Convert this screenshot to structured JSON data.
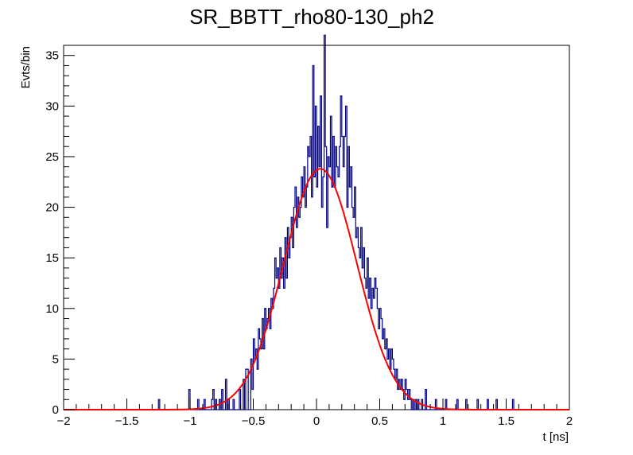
{
  "chart_data": {
    "type": "histogram",
    "title": "SR_BBTT_rho80-130_ph2",
    "xlabel": "t [ns]",
    "ylabel": "Evts/bin",
    "xlim": [
      -2,
      2
    ],
    "ylim": [
      0,
      36
    ],
    "bin_width": 0.01,
    "x_ticks": [
      -2,
      -1.5,
      -1,
      -0.5,
      0,
      0.5,
      1,
      1.5,
      2
    ],
    "x_tick_labels": [
      "−2",
      "−1.5",
      "−1",
      "−0.5",
      "0",
      "0.5",
      "1",
      "1.5",
      "2"
    ],
    "y_ticks": [
      0,
      5,
      10,
      15,
      20,
      25,
      30,
      35
    ],
    "y_tick_labels": [
      "0",
      "5",
      "10",
      "15",
      "20",
      "25",
      "30",
      "35"
    ],
    "grid": false,
    "histogram_color": "#000080",
    "fit_color": "#ff0000",
    "nonzero_bins": [
      [
        -1.25,
        1
      ],
      [
        -1.01,
        2
      ],
      [
        -0.94,
        1
      ],
      [
        -0.89,
        1
      ],
      [
        -0.83,
        1
      ],
      [
        -0.82,
        2
      ],
      [
        -0.8,
        1
      ],
      [
        -0.77,
        1
      ],
      [
        -0.75,
        2
      ],
      [
        -0.72,
        3
      ],
      [
        -0.7,
        1
      ],
      [
        -0.66,
        1
      ],
      [
        -0.61,
        2
      ],
      [
        -0.58,
        3
      ],
      [
        -0.56,
        4
      ],
      [
        -0.55,
        4
      ],
      [
        -0.52,
        5
      ],
      [
        -0.51,
        2
      ],
      [
        -0.5,
        7
      ],
      [
        -0.49,
        5
      ],
      [
        -0.48,
        6
      ],
      [
        -0.47,
        4
      ],
      [
        -0.46,
        8
      ],
      [
        -0.45,
        7
      ],
      [
        -0.44,
        6
      ],
      [
        -0.43,
        9
      ],
      [
        -0.42,
        6
      ],
      [
        -0.41,
        10
      ],
      [
        -0.4,
        8
      ],
      [
        -0.39,
        9
      ],
      [
        -0.38,
        10
      ],
      [
        -0.37,
        8
      ],
      [
        -0.36,
        11
      ],
      [
        -0.35,
        10
      ],
      [
        -0.34,
        12
      ],
      [
        -0.33,
        15
      ],
      [
        -0.32,
        13
      ],
      [
        -0.31,
        14
      ],
      [
        -0.3,
        12
      ],
      [
        -0.29,
        16
      ],
      [
        -0.28,
        13
      ],
      [
        -0.27,
        15
      ],
      [
        -0.26,
        12
      ],
      [
        -0.25,
        17
      ],
      [
        -0.24,
        13
      ],
      [
        -0.23,
        18
      ],
      [
        -0.22,
        15
      ],
      [
        -0.21,
        17
      ],
      [
        -0.2,
        19
      ],
      [
        -0.19,
        16
      ],
      [
        -0.18,
        20
      ],
      [
        -0.17,
        22
      ],
      [
        -0.16,
        18
      ],
      [
        -0.15,
        21
      ],
      [
        -0.14,
        19
      ],
      [
        -0.13,
        20
      ],
      [
        -0.12,
        23
      ],
      [
        -0.11,
        21
      ],
      [
        -0.1,
        24
      ],
      [
        -0.09,
        20
      ],
      [
        -0.08,
        22
      ],
      [
        -0.07,
        26
      ],
      [
        -0.06,
        25
      ],
      [
        -0.05,
        27
      ],
      [
        -0.04,
        21
      ],
      [
        -0.03,
        34
      ],
      [
        -0.02,
        23
      ],
      [
        -0.01,
        30
      ],
      [
        0.0,
        22
      ],
      [
        0.01,
        28
      ],
      [
        0.02,
        24
      ],
      [
        0.03,
        31
      ],
      [
        0.04,
        20
      ],
      [
        0.05,
        23
      ],
      [
        0.06,
        38
      ],
      [
        0.07,
        26
      ],
      [
        0.08,
        18
      ],
      [
        0.09,
        25
      ],
      [
        0.1,
        24
      ],
      [
        0.11,
        29
      ],
      [
        0.12,
        22
      ],
      [
        0.13,
        27
      ],
      [
        0.14,
        22
      ],
      [
        0.15,
        26
      ],
      [
        0.16,
        24
      ],
      [
        0.17,
        23
      ],
      [
        0.18,
        26
      ],
      [
        0.19,
        31
      ],
      [
        0.2,
        27
      ],
      [
        0.21,
        24
      ],
      [
        0.22,
        27
      ],
      [
        0.23,
        30
      ],
      [
        0.24,
        20
      ],
      [
        0.25,
        26
      ],
      [
        0.26,
        22
      ],
      [
        0.27,
        24
      ],
      [
        0.28,
        20
      ],
      [
        0.29,
        19
      ],
      [
        0.3,
        22
      ],
      [
        0.31,
        17
      ],
      [
        0.32,
        18
      ],
      [
        0.33,
        16
      ],
      [
        0.34,
        15
      ],
      [
        0.35,
        18
      ],
      [
        0.36,
        14
      ],
      [
        0.37,
        16
      ],
      [
        0.38,
        13
      ],
      [
        0.39,
        12
      ],
      [
        0.4,
        15
      ],
      [
        0.41,
        11
      ],
      [
        0.42,
        13
      ],
      [
        0.43,
        10
      ],
      [
        0.44,
        12
      ],
      [
        0.45,
        11
      ],
      [
        0.46,
        13
      ],
      [
        0.47,
        12
      ],
      [
        0.48,
        10
      ],
      [
        0.49,
        8
      ],
      [
        0.5,
        10
      ],
      [
        0.51,
        9
      ],
      [
        0.52,
        7
      ],
      [
        0.53,
        8
      ],
      [
        0.54,
        6
      ],
      [
        0.55,
        7
      ],
      [
        0.56,
        5
      ],
      [
        0.57,
        6
      ],
      [
        0.58,
        4
      ],
      [
        0.59,
        6
      ],
      [
        0.6,
        5
      ],
      [
        0.61,
        4
      ],
      [
        0.62,
        3
      ],
      [
        0.63,
        4
      ],
      [
        0.64,
        2
      ],
      [
        0.65,
        3
      ],
      [
        0.66,
        2
      ],
      [
        0.67,
        3
      ],
      [
        0.68,
        2
      ],
      [
        0.69,
        1
      ],
      [
        0.7,
        3
      ],
      [
        0.71,
        2
      ],
      [
        0.72,
        1
      ],
      [
        0.73,
        2
      ],
      [
        0.74,
        1
      ],
      [
        0.76,
        1
      ],
      [
        0.78,
        1
      ],
      [
        0.8,
        1
      ],
      [
        0.83,
        1
      ],
      [
        0.86,
        2
      ],
      [
        0.94,
        1
      ],
      [
        1.02,
        1
      ],
      [
        1.11,
        1
      ],
      [
        1.18,
        1
      ],
      [
        1.27,
        1
      ],
      [
        1.35,
        1
      ],
      [
        1.42,
        1
      ],
      [
        1.55,
        1
      ]
    ],
    "fit": {
      "function": "gaussian",
      "amplitude": 23.8,
      "mean": 0.03,
      "sigma": 0.29
    }
  }
}
